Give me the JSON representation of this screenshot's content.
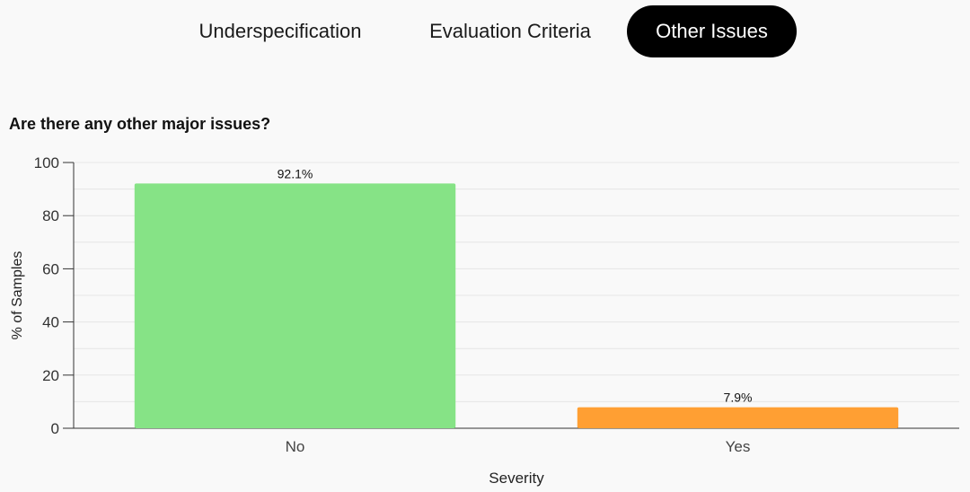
{
  "tabs": [
    {
      "label": "Underspecification",
      "active": false
    },
    {
      "label": "Evaluation Criteria",
      "active": false
    },
    {
      "label": "Other Issues",
      "active": true
    }
  ],
  "chart_data": {
    "type": "bar",
    "title": "Are there any other major issues?",
    "categories": [
      "No",
      "Yes"
    ],
    "values": [
      92.1,
      7.9
    ],
    "data_labels": [
      "92.1%",
      "7.9%"
    ],
    "colors": [
      "#86e386",
      "#ff9f33"
    ],
    "xlabel": "Severity",
    "ylabel": "% of Samples",
    "ylim": [
      0,
      100
    ],
    "yticks": [
      0,
      20,
      40,
      60,
      80,
      100
    ],
    "grid": true
  }
}
